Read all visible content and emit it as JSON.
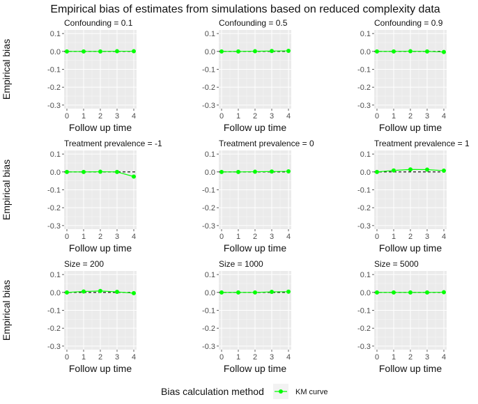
{
  "chart_data": {
    "type": "line",
    "title": "Empirical bias of estimates from simulations based on reduced complexity data",
    "ylabel": "Empirical bias",
    "xlabel": "Follow up time",
    "x": [
      0,
      1,
      2,
      3,
      4
    ],
    "xticks": [
      "0",
      "1",
      "2",
      "3",
      "4"
    ],
    "ylim": [
      -0.32,
      0.12
    ],
    "yticks": [
      0.1,
      0.0,
      -0.1,
      -0.2,
      -0.3
    ],
    "ytick_labels": [
      "0.1",
      "0.0",
      "-0.1",
      "-0.2",
      "-0.3"
    ],
    "reference_line": 0,
    "grid": true,
    "legend": {
      "title": "Bias calculation method",
      "position": "bottom",
      "entries": [
        {
          "name": "KM curve",
          "color": "#00ff00"
        }
      ]
    },
    "series_color": "#00ff00",
    "panels": [
      {
        "title": "Confounding = 0.1",
        "series": [
          {
            "name": "KM curve",
            "values": [
              0.0,
              0.0,
              0.0,
              0.001,
              0.001
            ]
          }
        ]
      },
      {
        "title": "Confounding = 0.5",
        "series": [
          {
            "name": "KM curve",
            "values": [
              0.0,
              0.0,
              0.001,
              0.002,
              0.003
            ]
          }
        ]
      },
      {
        "title": "Confounding = 0.9",
        "series": [
          {
            "name": "KM curve",
            "values": [
              0.0,
              0.0,
              0.001,
              0.0,
              -0.003
            ]
          }
        ]
      },
      {
        "title": "Treatment prevalence = -1",
        "series": [
          {
            "name": "KM curve",
            "values": [
              0.0,
              0.0,
              0.001,
              0.0,
              -0.026
            ]
          }
        ]
      },
      {
        "title": "Treatment prevalence = 0",
        "series": [
          {
            "name": "KM curve",
            "values": [
              0.0,
              0.0,
              0.001,
              0.002,
              0.003
            ]
          }
        ]
      },
      {
        "title": "Treatment prevalence = 1",
        "series": [
          {
            "name": "KM curve",
            "values": [
              0.0,
              0.008,
              0.014,
              0.013,
              0.007
            ]
          }
        ]
      },
      {
        "title": "Size = 200",
        "series": [
          {
            "name": "KM curve",
            "values": [
              0.0,
              0.005,
              0.008,
              0.003,
              -0.004
            ]
          }
        ]
      },
      {
        "title": "Size = 1000",
        "series": [
          {
            "name": "KM curve",
            "values": [
              0.0,
              0.0,
              0.0,
              0.003,
              0.004
            ]
          }
        ]
      },
      {
        "title": "Size = 5000",
        "series": [
          {
            "name": "KM curve",
            "values": [
              0.0,
              0.0,
              0.0,
              0.0,
              0.001
            ]
          }
        ]
      }
    ]
  }
}
